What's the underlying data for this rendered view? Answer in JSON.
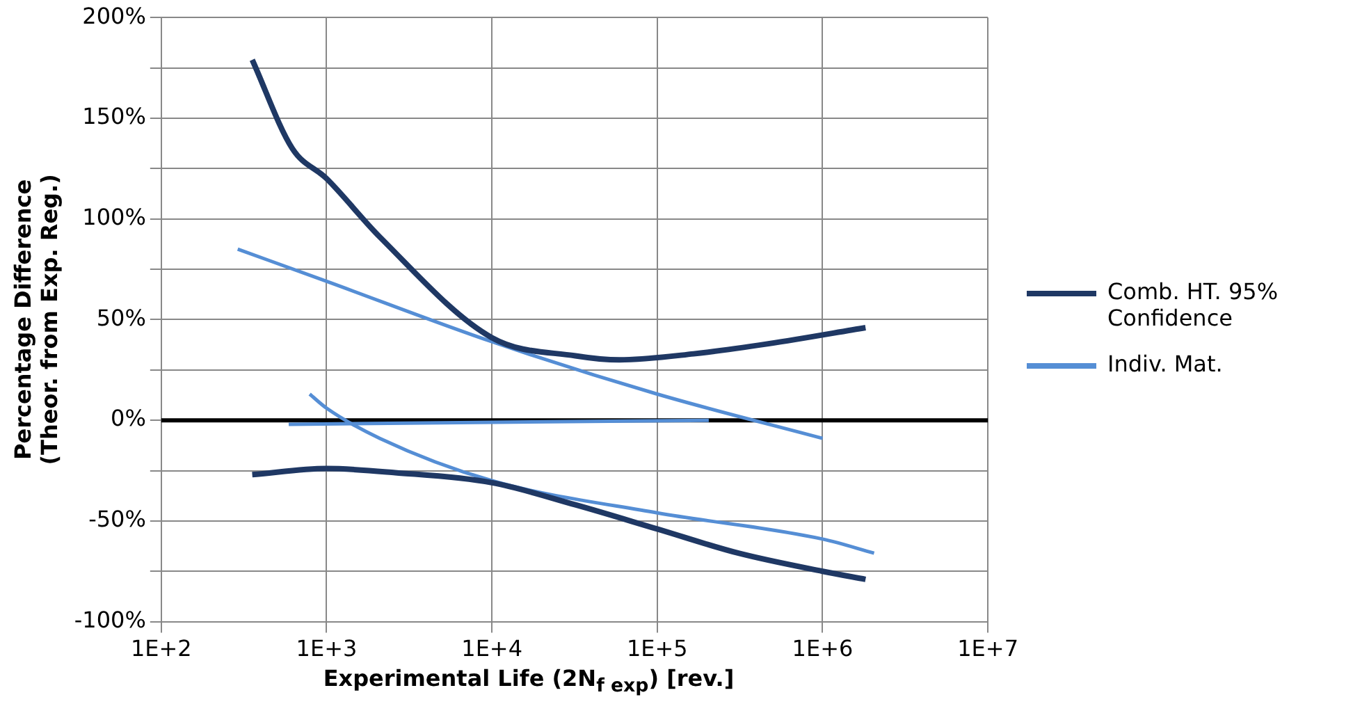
{
  "chart_data": {
    "type": "line",
    "xlabel": "Experimental Life (2N$_{f exp}$) [rev.]",
    "ylabel": "Percentage Difference\n(Theor. from Exp. Reg.)",
    "log": "x",
    "xlim": [
      100,
      10000000
    ],
    "xticks": [
      {
        "value": 100,
        "label": "1E+2"
      },
      {
        "value": 1000,
        "label": "1E+3"
      },
      {
        "value": 10000,
        "label": "1E+4"
      },
      {
        "value": 100000,
        "label": "1E+5"
      },
      {
        "value": 1000000,
        "label": "1E+6"
      },
      {
        "value": 10000000,
        "label": "1E+7"
      }
    ],
    "ylim": [
      -100,
      200
    ],
    "yticks": [
      {
        "value": -100,
        "label": "-100%"
      },
      {
        "value": -75,
        "label": null
      },
      {
        "value": -50,
        "label": "-50%"
      },
      {
        "value": -25,
        "label": null
      },
      {
        "value": 0,
        "label": "0%"
      },
      {
        "value": 25,
        "label": null
      },
      {
        "value": 50,
        "label": "50%"
      },
      {
        "value": 75,
        "label": null
      },
      {
        "value": 100,
        "label": "100%"
      },
      {
        "value": 125,
        "label": null
      },
      {
        "value": 150,
        "label": "150%"
      },
      {
        "value": 175,
        "label": null
      },
      {
        "value": 200,
        "label": "200%"
      }
    ],
    "grid": true,
    "legend": "right",
    "marker": "none",
    "ref_lines": [
      {
        "axis": "y",
        "value": 0,
        "color": "#000000"
      }
    ],
    "series": [
      {
        "name": "Comb. HT. 95% Confidence",
        "color": "#1f3864",
        "x": [
          355,
          620,
          1000,
          2100,
          10000,
          32000,
          59000,
          166000,
          470000,
          1820000
        ],
        "values": [
          179,
          135,
          120,
          91,
          41,
          32,
          30,
          33,
          38,
          46
        ]
      },
      {
        "color": "#1f3864",
        "x": [
          355,
          1000,
          2600,
          10000,
          32000,
          100000,
          310000,
          1000000,
          1820000
        ],
        "values": [
          -27,
          -24,
          -26,
          -31,
          -42,
          -54,
          -66,
          -75,
          -79
        ]
      },
      {
        "name": "Indiv. Mat.",
        "color": "#558ed5",
        "x": [
          290,
          1000,
          10000,
          100000,
          1000000
        ],
        "values": [
          85,
          69,
          39,
          13,
          -9
        ]
      },
      {
        "color": "#558ed5",
        "x": [
          790,
          1000,
          2100,
          10000,
          100000,
          1000000,
          2050000
        ],
        "values": [
          13,
          6,
          -9,
          -30,
          -46,
          -59,
          -66
        ]
      },
      {
        "color": "#558ed5",
        "x": [
          590,
          205000
        ],
        "values": [
          -2,
          0
        ]
      }
    ]
  }
}
